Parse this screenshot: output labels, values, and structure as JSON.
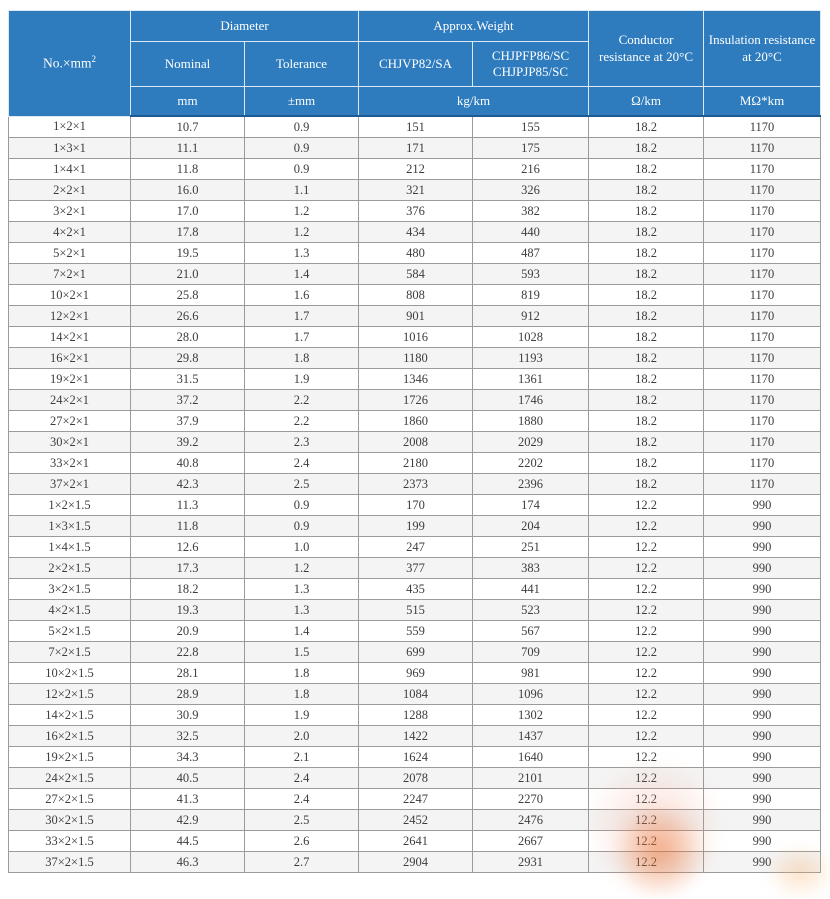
{
  "table": {
    "header": {
      "no_col_prefix": "No.×mm",
      "no_col_sup": "2",
      "diameter": "Diameter",
      "nominal": "Nominal",
      "tolerance": "Tolerance",
      "approx_weight": "Approx.Weight",
      "weight_type_1": "CHJVP82/SA",
      "weight_type_2_line1": "CHJPFP86/SC",
      "weight_type_2_line2": "CHJPJP85/SC",
      "conductor_resistance": "Conductor resistance at 20°C",
      "insulation_resistance": "Insulation resistance at 20°C",
      "units": {
        "nominal": "mm",
        "tolerance": "±mm",
        "weight": "kg/km",
        "conductor": "Ω/km",
        "insulation": "MΩ*km"
      }
    },
    "rows": [
      [
        "1×2×1",
        "10.7",
        "0.9",
        "151",
        "155",
        "18.2",
        "1170"
      ],
      [
        "1×3×1",
        "11.1",
        "0.9",
        "171",
        "175",
        "18.2",
        "1170"
      ],
      [
        "1×4×1",
        "11.8",
        "0.9",
        "212",
        "216",
        "18.2",
        "1170"
      ],
      [
        "2×2×1",
        "16.0",
        "1.1",
        "321",
        "326",
        "18.2",
        "1170"
      ],
      [
        "3×2×1",
        "17.0",
        "1.2",
        "376",
        "382",
        "18.2",
        "1170"
      ],
      [
        "4×2×1",
        "17.8",
        "1.2",
        "434",
        "440",
        "18.2",
        "1170"
      ],
      [
        "5×2×1",
        "19.5",
        "1.3",
        "480",
        "487",
        "18.2",
        "1170"
      ],
      [
        "7×2×1",
        "21.0",
        "1.4",
        "584",
        "593",
        "18.2",
        "1170"
      ],
      [
        "10×2×1",
        "25.8",
        "1.6",
        "808",
        "819",
        "18.2",
        "1170"
      ],
      [
        "12×2×1",
        "26.6",
        "1.7",
        "901",
        "912",
        "18.2",
        "1170"
      ],
      [
        "14×2×1",
        "28.0",
        "1.7",
        "1016",
        "1028",
        "18.2",
        "1170"
      ],
      [
        "16×2×1",
        "29.8",
        "1.8",
        "1180",
        "1193",
        "18.2",
        "1170"
      ],
      [
        "19×2×1",
        "31.5",
        "1.9",
        "1346",
        "1361",
        "18.2",
        "1170"
      ],
      [
        "24×2×1",
        "37.2",
        "2.2",
        "1726",
        "1746",
        "18.2",
        "1170"
      ],
      [
        "27×2×1",
        "37.9",
        "2.2",
        "1860",
        "1880",
        "18.2",
        "1170"
      ],
      [
        "30×2×1",
        "39.2",
        "2.3",
        "2008",
        "2029",
        "18.2",
        "1170"
      ],
      [
        "33×2×1",
        "40.8",
        "2.4",
        "2180",
        "2202",
        "18.2",
        "1170"
      ],
      [
        "37×2×1",
        "42.3",
        "2.5",
        "2373",
        "2396",
        "18.2",
        "1170"
      ],
      [
        "1×2×1.5",
        "11.3",
        "0.9",
        "170",
        "174",
        "12.2",
        "990"
      ],
      [
        "1×3×1.5",
        "11.8",
        "0.9",
        "199",
        "204",
        "12.2",
        "990"
      ],
      [
        "1×4×1.5",
        "12.6",
        "1.0",
        "247",
        "251",
        "12.2",
        "990"
      ],
      [
        "2×2×1.5",
        "17.3",
        "1.2",
        "377",
        "383",
        "12.2",
        "990"
      ],
      [
        "3×2×1.5",
        "18.2",
        "1.3",
        "435",
        "441",
        "12.2",
        "990"
      ],
      [
        "4×2×1.5",
        "19.3",
        "1.3",
        "515",
        "523",
        "12.2",
        "990"
      ],
      [
        "5×2×1.5",
        "20.9",
        "1.4",
        "559",
        "567",
        "12.2",
        "990"
      ],
      [
        "7×2×1.5",
        "22.8",
        "1.5",
        "699",
        "709",
        "12.2",
        "990"
      ],
      [
        "10×2×1.5",
        "28.1",
        "1.8",
        "969",
        "981",
        "12.2",
        "990"
      ],
      [
        "12×2×1.5",
        "28.9",
        "1.8",
        "1084",
        "1096",
        "12.2",
        "990"
      ],
      [
        "14×2×1.5",
        "30.9",
        "1.9",
        "1288",
        "1302",
        "12.2",
        "990"
      ],
      [
        "16×2×1.5",
        "32.5",
        "2.0",
        "1422",
        "1437",
        "12.2",
        "990"
      ],
      [
        "19×2×1.5",
        "34.3",
        "2.1",
        "1624",
        "1640",
        "12.2",
        "990"
      ],
      [
        "24×2×1.5",
        "40.5",
        "2.4",
        "2078",
        "2101",
        "12.2",
        "990"
      ],
      [
        "27×2×1.5",
        "41.3",
        "2.4",
        "2247",
        "2270",
        "12.2",
        "990"
      ],
      [
        "30×2×1.5",
        "42.9",
        "2.5",
        "2452",
        "2476",
        "12.2",
        "990"
      ],
      [
        "33×2×1.5",
        "44.5",
        "2.6",
        "2641",
        "2667",
        "12.2",
        "990"
      ],
      [
        "37×2×1.5",
        "46.3",
        "2.7",
        "2904",
        "2931",
        "12.2",
        "990"
      ]
    ]
  },
  "colors": {
    "header_blue": "#2e7cbe",
    "header_bottom_line": "#1d5a94",
    "row_stripe": "#f4f4f4",
    "grid_border": "#9b9b9b",
    "body_text": "#3d3d3d",
    "watermark_orange": "#e8631a"
  }
}
